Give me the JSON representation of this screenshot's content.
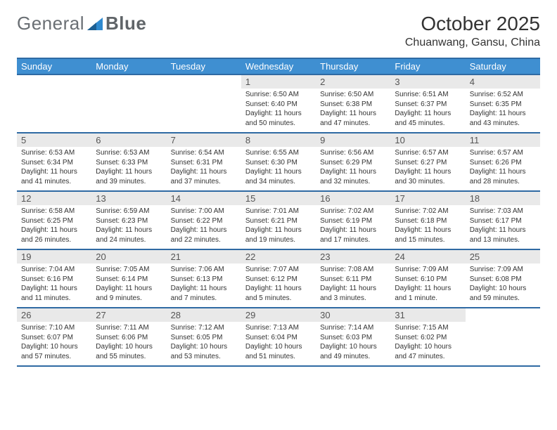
{
  "brand": {
    "part1": "General",
    "part2": "Blue"
  },
  "header": {
    "month": "October 2025",
    "location": "Chuanwang, Gansu, China"
  },
  "colors": {
    "header_bg": "#3f8fd1",
    "header_text": "#ffffff",
    "divider": "#2f6aa3",
    "daynum_bg": "#e9e9e9",
    "body_text": "#333333",
    "logo_text": "#6a6f74",
    "logo_accent": "#2f8ad0"
  },
  "day_names": [
    "Sunday",
    "Monday",
    "Tuesday",
    "Wednesday",
    "Thursday",
    "Friday",
    "Saturday"
  ],
  "weeks": [
    [
      null,
      null,
      null,
      {
        "num": "1",
        "sunrise": "6:50 AM",
        "sunset": "6:40 PM",
        "daylight": "11 hours and 50 minutes."
      },
      {
        "num": "2",
        "sunrise": "6:50 AM",
        "sunset": "6:38 PM",
        "daylight": "11 hours and 47 minutes."
      },
      {
        "num": "3",
        "sunrise": "6:51 AM",
        "sunset": "6:37 PM",
        "daylight": "11 hours and 45 minutes."
      },
      {
        "num": "4",
        "sunrise": "6:52 AM",
        "sunset": "6:35 PM",
        "daylight": "11 hours and 43 minutes."
      }
    ],
    [
      {
        "num": "5",
        "sunrise": "6:53 AM",
        "sunset": "6:34 PM",
        "daylight": "11 hours and 41 minutes."
      },
      {
        "num": "6",
        "sunrise": "6:53 AM",
        "sunset": "6:33 PM",
        "daylight": "11 hours and 39 minutes."
      },
      {
        "num": "7",
        "sunrise": "6:54 AM",
        "sunset": "6:31 PM",
        "daylight": "11 hours and 37 minutes."
      },
      {
        "num": "8",
        "sunrise": "6:55 AM",
        "sunset": "6:30 PM",
        "daylight": "11 hours and 34 minutes."
      },
      {
        "num": "9",
        "sunrise": "6:56 AM",
        "sunset": "6:29 PM",
        "daylight": "11 hours and 32 minutes."
      },
      {
        "num": "10",
        "sunrise": "6:57 AM",
        "sunset": "6:27 PM",
        "daylight": "11 hours and 30 minutes."
      },
      {
        "num": "11",
        "sunrise": "6:57 AM",
        "sunset": "6:26 PM",
        "daylight": "11 hours and 28 minutes."
      }
    ],
    [
      {
        "num": "12",
        "sunrise": "6:58 AM",
        "sunset": "6:25 PM",
        "daylight": "11 hours and 26 minutes."
      },
      {
        "num": "13",
        "sunrise": "6:59 AM",
        "sunset": "6:23 PM",
        "daylight": "11 hours and 24 minutes."
      },
      {
        "num": "14",
        "sunrise": "7:00 AM",
        "sunset": "6:22 PM",
        "daylight": "11 hours and 22 minutes."
      },
      {
        "num": "15",
        "sunrise": "7:01 AM",
        "sunset": "6:21 PM",
        "daylight": "11 hours and 19 minutes."
      },
      {
        "num": "16",
        "sunrise": "7:02 AM",
        "sunset": "6:19 PM",
        "daylight": "11 hours and 17 minutes."
      },
      {
        "num": "17",
        "sunrise": "7:02 AM",
        "sunset": "6:18 PM",
        "daylight": "11 hours and 15 minutes."
      },
      {
        "num": "18",
        "sunrise": "7:03 AM",
        "sunset": "6:17 PM",
        "daylight": "11 hours and 13 minutes."
      }
    ],
    [
      {
        "num": "19",
        "sunrise": "7:04 AM",
        "sunset": "6:16 PM",
        "daylight": "11 hours and 11 minutes."
      },
      {
        "num": "20",
        "sunrise": "7:05 AM",
        "sunset": "6:14 PM",
        "daylight": "11 hours and 9 minutes."
      },
      {
        "num": "21",
        "sunrise": "7:06 AM",
        "sunset": "6:13 PM",
        "daylight": "11 hours and 7 minutes."
      },
      {
        "num": "22",
        "sunrise": "7:07 AM",
        "sunset": "6:12 PM",
        "daylight": "11 hours and 5 minutes."
      },
      {
        "num": "23",
        "sunrise": "7:08 AM",
        "sunset": "6:11 PM",
        "daylight": "11 hours and 3 minutes."
      },
      {
        "num": "24",
        "sunrise": "7:09 AM",
        "sunset": "6:10 PM",
        "daylight": "11 hours and 1 minute."
      },
      {
        "num": "25",
        "sunrise": "7:09 AM",
        "sunset": "6:08 PM",
        "daylight": "10 hours and 59 minutes."
      }
    ],
    [
      {
        "num": "26",
        "sunrise": "7:10 AM",
        "sunset": "6:07 PM",
        "daylight": "10 hours and 57 minutes."
      },
      {
        "num": "27",
        "sunrise": "7:11 AM",
        "sunset": "6:06 PM",
        "daylight": "10 hours and 55 minutes."
      },
      {
        "num": "28",
        "sunrise": "7:12 AM",
        "sunset": "6:05 PM",
        "daylight": "10 hours and 53 minutes."
      },
      {
        "num": "29",
        "sunrise": "7:13 AM",
        "sunset": "6:04 PM",
        "daylight": "10 hours and 51 minutes."
      },
      {
        "num": "30",
        "sunrise": "7:14 AM",
        "sunset": "6:03 PM",
        "daylight": "10 hours and 49 minutes."
      },
      {
        "num": "31",
        "sunrise": "7:15 AM",
        "sunset": "6:02 PM",
        "daylight": "10 hours and 47 minutes."
      },
      null
    ]
  ],
  "labels": {
    "sunrise": "Sunrise:",
    "sunset": "Sunset:",
    "daylight": "Daylight:"
  }
}
